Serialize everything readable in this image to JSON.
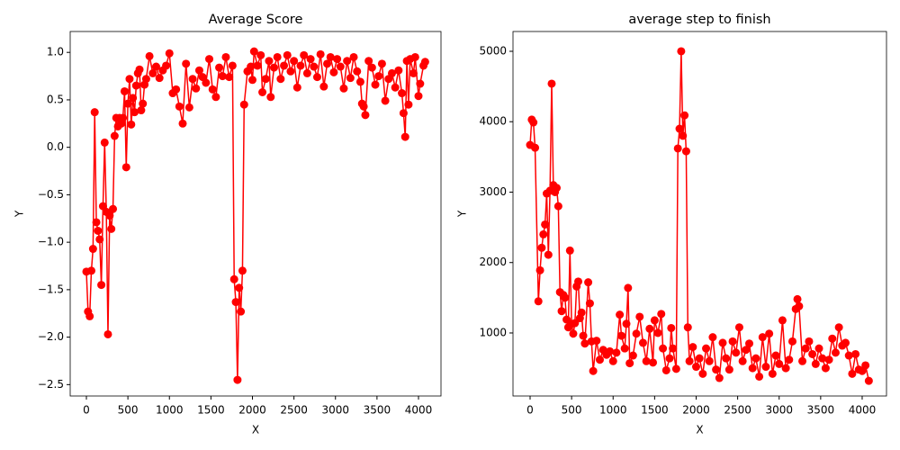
{
  "chart_data": [
    {
      "type": "line",
      "title": "Average Score",
      "x_label": "X",
      "y_label": "Y",
      "color": "#ff0000",
      "marker": true,
      "x": [
        0,
        20,
        40,
        60,
        80,
        100,
        120,
        140,
        160,
        180,
        200,
        220,
        240,
        260,
        280,
        300,
        320,
        340,
        360,
        380,
        400,
        420,
        440,
        460,
        480,
        500,
        520,
        540,
        560,
        580,
        600,
        620,
        640,
        660,
        680,
        700,
        720,
        760,
        800,
        840,
        880,
        920,
        960,
        1000,
        1040,
        1080,
        1120,
        1160,
        1200,
        1240,
        1280,
        1320,
        1360,
        1400,
        1440,
        1480,
        1520,
        1560,
        1600,
        1640,
        1680,
        1720,
        1760,
        1780,
        1800,
        1820,
        1840,
        1860,
        1880,
        1900,
        1940,
        1980,
        2000,
        2020,
        2060,
        2100,
        2120,
        2160,
        2200,
        2220,
        2260,
        2300,
        2340,
        2380,
        2420,
        2460,
        2500,
        2540,
        2580,
        2620,
        2660,
        2700,
        2740,
        2780,
        2820,
        2860,
        2900,
        2940,
        2980,
        3020,
        3060,
        3100,
        3140,
        3180,
        3220,
        3260,
        3300,
        3320,
        3340,
        3360,
        3400,
        3440,
        3480,
        3520,
        3560,
        3600,
        3640,
        3680,
        3720,
        3760,
        3800,
        3820,
        3840,
        3860,
        3880,
        3900,
        3940,
        3960,
        4000,
        4020,
        4060,
        4080
      ],
      "values": [
        -1.31,
        -1.73,
        -1.78,
        -1.3,
        -1.07,
        0.37,
        -0.79,
        -0.88,
        -0.97,
        -1.45,
        -0.62,
        0.05,
        -0.68,
        -1.97,
        -0.72,
        -0.86,
        -0.65,
        0.12,
        0.31,
        0.22,
        0.31,
        0.25,
        0.31,
        0.59,
        -0.21,
        0.46,
        0.72,
        0.24,
        0.52,
        0.37,
        0.65,
        0.78,
        0.82,
        0.39,
        0.46,
        0.66,
        0.72,
        0.96,
        0.78,
        0.85,
        0.73,
        0.81,
        0.86,
        0.99,
        0.57,
        0.61,
        0.43,
        0.25,
        0.88,
        0.42,
        0.72,
        0.62,
        0.81,
        0.74,
        0.68,
        0.93,
        0.61,
        0.53,
        0.84,
        0.75,
        0.95,
        0.74,
        0.86,
        -1.39,
        -1.63,
        -2.45,
        -1.48,
        -1.73,
        -1.3,
        0.45,
        0.8,
        0.85,
        0.71,
        1.01,
        0.86,
        0.97,
        0.58,
        0.72,
        0.91,
        0.53,
        0.84,
        0.95,
        0.72,
        0.86,
        0.97,
        0.8,
        0.91,
        0.63,
        0.86,
        0.97,
        0.78,
        0.93,
        0.85,
        0.74,
        0.98,
        0.64,
        0.88,
        0.95,
        0.79,
        0.93,
        0.85,
        0.62,
        0.91,
        0.73,
        0.95,
        0.8,
        0.69,
        0.46,
        0.43,
        0.34,
        0.91,
        0.84,
        0.66,
        0.75,
        0.88,
        0.49,
        0.72,
        0.78,
        0.63,
        0.81,
        0.57,
        0.36,
        0.11,
        0.91,
        0.45,
        0.93,
        0.78,
        0.95,
        0.54,
        0.67,
        0.86,
        0.9
      ],
      "xlim": [
        -195,
        4271
      ],
      "ylim": [
        -2.62,
        1.22
      ],
      "xticks": [
        0,
        500,
        1000,
        1500,
        2000,
        2500,
        3000,
        3500,
        4000
      ],
      "yticks": [
        {
          "value": -2.5,
          "label": "−2.5"
        },
        {
          "value": -2.0,
          "label": "−2.0"
        },
        {
          "value": -1.5,
          "label": "−1.5"
        },
        {
          "value": -1.0,
          "label": "−1.0"
        },
        {
          "value": -0.5,
          "label": "−0.5"
        },
        {
          "value": 0,
          "label": "0.0"
        },
        0.5,
        {
          "value": 1,
          "label": "1.0"
        }
      ]
    },
    {
      "type": "line",
      "title": "average step to finish",
      "x_label": "X",
      "y_label": "Y",
      "color": "#ff0000",
      "marker": true,
      "x": [
        0,
        20,
        40,
        60,
        100,
        120,
        140,
        160,
        180,
        200,
        220,
        240,
        260,
        280,
        300,
        320,
        340,
        360,
        380,
        400,
        420,
        440,
        460,
        480,
        500,
        520,
        540,
        560,
        580,
        600,
        620,
        640,
        660,
        700,
        720,
        740,
        760,
        800,
        840,
        880,
        920,
        960,
        1000,
        1040,
        1080,
        1100,
        1140,
        1160,
        1180,
        1200,
        1240,
        1280,
        1320,
        1360,
        1400,
        1440,
        1480,
        1500,
        1540,
        1580,
        1600,
        1640,
        1680,
        1700,
        1720,
        1760,
        1780,
        1800,
        1820,
        1840,
        1860,
        1880,
        1900,
        1920,
        1960,
        2000,
        2040,
        2080,
        2120,
        2160,
        2200,
        2240,
        2280,
        2320,
        2360,
        2400,
        2440,
        2480,
        2520,
        2560,
        2600,
        2640,
        2680,
        2720,
        2760,
        2800,
        2840,
        2880,
        2920,
        2960,
        3000,
        3040,
        3080,
        3120,
        3160,
        3200,
        3220,
        3240,
        3280,
        3320,
        3360,
        3400,
        3440,
        3480,
        3520,
        3560,
        3600,
        3640,
        3680,
        3720,
        3760,
        3800,
        3840,
        3880,
        3920,
        3960,
        4000,
        4040,
        4080
      ],
      "values": [
        3670,
        4030,
        3990,
        3630,
        1450,
        1890,
        2210,
        2400,
        2540,
        2980,
        2110,
        3020,
        4540,
        3100,
        3000,
        3060,
        2800,
        1580,
        1310,
        1540,
        1500,
        1190,
        1080,
        2170,
        1130,
        990,
        1140,
        1660,
        1730,
        1210,
        1290,
        960,
        850,
        1720,
        1420,
        880,
        460,
        890,
        620,
        760,
        690,
        740,
        600,
        720,
        1260,
        960,
        780,
        1130,
        1640,
        570,
        680,
        990,
        1230,
        860,
        600,
        1060,
        580,
        1180,
        1000,
        1270,
        780,
        470,
        640,
        1070,
        780,
        490,
        3620,
        3900,
        5000,
        3800,
        4090,
        3580,
        1080,
        600,
        800,
        520,
        640,
        420,
        780,
        600,
        940,
        480,
        360,
        860,
        640,
        480,
        880,
        720,
        1080,
        600,
        760,
        850,
        500,
        640,
        380,
        940,
        520,
        990,
        420,
        680,
        560,
        1180,
        500,
        620,
        880,
        1340,
        1480,
        1380,
        600,
        780,
        880,
        700,
        560,
        780,
        640,
        500,
        620,
        920,
        720,
        1080,
        820,
        860,
        680,
        420,
        700,
        480,
        460,
        540,
        320
      ],
      "xlim": [
        -206,
        4293
      ],
      "ylim": [
        105,
        5281
      ],
      "xticks": [
        0,
        500,
        1000,
        1500,
        2000,
        2500,
        3000,
        3500,
        4000
      ],
      "yticks": [
        1000,
        2000,
        3000,
        4000,
        5000
      ]
    }
  ]
}
